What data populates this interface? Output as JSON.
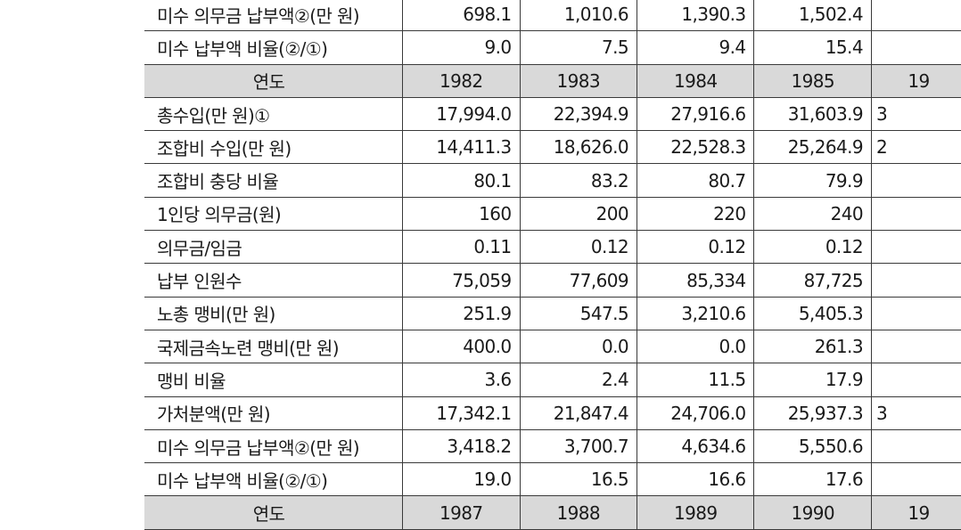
{
  "columns_count": 6,
  "rows": [
    {
      "header": false,
      "label": "미수 의무금 납부액②(만 원)",
      "values": [
        "698.1",
        "1,010.6",
        "1,390.3",
        "1,502.4",
        ""
      ]
    },
    {
      "header": false,
      "label": "미수 납부액 비율(②/①)",
      "values": [
        "9.0",
        "7.5",
        "9.4",
        "15.4",
        ""
      ]
    },
    {
      "header": true,
      "label": "연도",
      "values": [
        "1982",
        "1983",
        "1984",
        "1985",
        "19"
      ]
    },
    {
      "header": false,
      "label": "총수입(만 원)①",
      "values": [
        "17,994.0",
        "22,394.9",
        "27,916.6",
        "31,603.9",
        "3"
      ]
    },
    {
      "header": false,
      "label": "조합비 수입(만 원)",
      "values": [
        "14,411.3",
        "18,626.0",
        "22,528.3",
        "25,264.9",
        "2"
      ]
    },
    {
      "header": false,
      "label": "조합비 충당 비율",
      "values": [
        "80.1",
        "83.2",
        "80.7",
        "79.9",
        ""
      ]
    },
    {
      "header": false,
      "label": "1인당 의무금(원)",
      "values": [
        "160",
        "200",
        "220",
        "240",
        ""
      ]
    },
    {
      "header": false,
      "label": "의무금/임금",
      "values": [
        "0.11",
        "0.12",
        "0.12",
        "0.12",
        ""
      ]
    },
    {
      "header": false,
      "label": "납부 인원수",
      "values": [
        "75,059",
        "77,609",
        "85,334",
        "87,725",
        ""
      ]
    },
    {
      "header": false,
      "label": "노총 맹비(만 원)",
      "values": [
        "251.9",
        "547.5",
        "3,210.6",
        "5,405.3",
        ""
      ]
    },
    {
      "header": false,
      "label": "국제금속노련 맹비(만 원)",
      "values": [
        "400.0",
        "0.0",
        "0.0",
        "261.3",
        ""
      ]
    },
    {
      "header": false,
      "label": "맹비 비율",
      "values": [
        "3.6",
        "2.4",
        "11.5",
        "17.9",
        ""
      ]
    },
    {
      "header": false,
      "label": "가처분액(만 원)",
      "values": [
        "17,342.1",
        "21,847.4",
        "24,706.0",
        "25,937.3",
        "3"
      ]
    },
    {
      "header": false,
      "label": "미수 의무금 납부액②(만 원)",
      "values": [
        "3,418.2",
        "3,700.7",
        "4,634.6",
        "5,550.6",
        ""
      ]
    },
    {
      "header": false,
      "label": "미수 납부액 비율(②/①)",
      "values": [
        "19.0",
        "16.5",
        "16.6",
        "17.6",
        ""
      ]
    },
    {
      "header": true,
      "label": "연도",
      "values": [
        "1987",
        "1988",
        "1989",
        "1990",
        "19"
      ]
    }
  ]
}
